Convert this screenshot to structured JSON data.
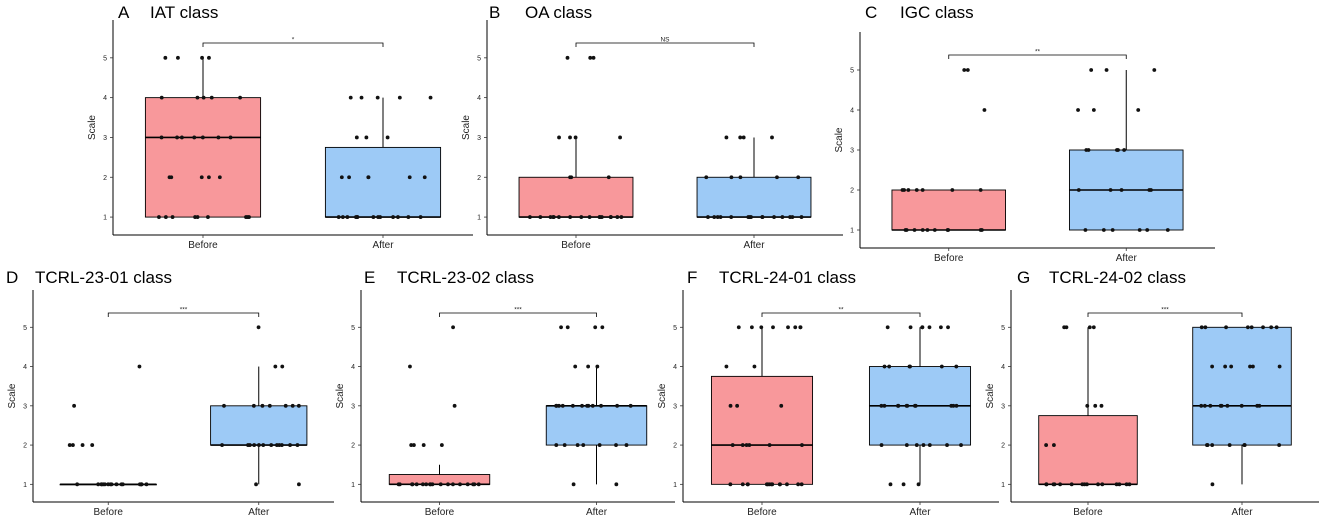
{
  "figure": {
    "colors": {
      "before": "#f8989b",
      "after": "#9dcaf6",
      "points": "#111111",
      "axis": "#000000"
    }
  },
  "chart_data": [
    {
      "type": "box",
      "letter": "A",
      "title": "IAT class",
      "ylabel": "Scale",
      "ylim": [
        0.55,
        5.95
      ],
      "yticks": [
        1,
        2,
        3,
        4,
        5
      ],
      "categories": [
        "Before",
        "After"
      ],
      "significance": "*",
      "boxes": [
        {
          "q1": 1,
          "median": 3,
          "q3": 4,
          "whisker_low": 1,
          "whisker_high": 5,
          "points": [
            5,
            5,
            5,
            5,
            4,
            4,
            4,
            4,
            4,
            3,
            3,
            3,
            3,
            3,
            3,
            3,
            2,
            2,
            2,
            2,
            2,
            1,
            1,
            1,
            1,
            1,
            1,
            1,
            1,
            1
          ]
        },
        {
          "q1": 1,
          "median": 1,
          "q3": 2.75,
          "whisker_low": 1,
          "whisker_high": 4,
          "points": [
            4,
            4,
            4,
            4,
            4,
            3,
            3,
            3,
            2,
            2,
            2,
            2,
            2,
            2,
            1,
            1,
            1,
            1,
            1,
            1,
            1,
            1,
            1,
            1,
            1,
            1,
            1
          ]
        }
      ]
    },
    {
      "type": "box",
      "letter": "B",
      "title": "OA class",
      "ylabel": "Scale",
      "ylim": [
        0.55,
        5.95
      ],
      "yticks": [
        1,
        2,
        3,
        4,
        5
      ],
      "categories": [
        "Before",
        "After"
      ],
      "significance": "NS",
      "boxes": [
        {
          "q1": 1,
          "median": 1,
          "q3": 2,
          "whisker_low": 1,
          "whisker_high": 3,
          "points": [
            5,
            5,
            5,
            3,
            3,
            3,
            3,
            2,
            2,
            2,
            1,
            1,
            1,
            1,
            1,
            1,
            1,
            1,
            1,
            1,
            1,
            1,
            1,
            1,
            1,
            1
          ]
        },
        {
          "q1": 1,
          "median": 1,
          "q3": 2,
          "whisker_low": 1,
          "whisker_high": 3,
          "points": [
            3,
            3,
            3,
            3,
            2,
            2,
            2,
            2,
            2,
            1,
            1,
            1,
            1,
            1,
            1,
            1,
            1,
            1,
            1,
            1,
            1,
            1,
            1,
            1
          ]
        }
      ]
    },
    {
      "type": "box",
      "letter": "C",
      "title": "IGC class",
      "ylabel": "Scale",
      "ylim": [
        0.55,
        5.95
      ],
      "yticks": [
        1,
        2,
        3,
        4,
        5
      ],
      "categories": [
        "Before",
        "After"
      ],
      "significance": "**",
      "boxes": [
        {
          "q1": 1,
          "median": 1,
          "q3": 2,
          "whisker_low": 1,
          "whisker_high": 2,
          "points": [
            5,
            5,
            4,
            2,
            2,
            2,
            2,
            2,
            2,
            2,
            1,
            1,
            1,
            1,
            1,
            1,
            1,
            1,
            1,
            1
          ]
        },
        {
          "q1": 1,
          "median": 2,
          "q3": 3,
          "whisker_low": 1,
          "whisker_high": 5,
          "points": [
            5,
            5,
            5,
            4,
            4,
            4,
            3,
            3,
            3,
            3,
            3,
            2,
            2,
            2,
            2,
            2,
            1,
            1,
            1,
            1,
            1,
            1
          ]
        }
      ]
    },
    {
      "type": "box",
      "letter": "D",
      "title": "TCRL-23-01 class",
      "ylabel": "Scale",
      "ylim": [
        0.55,
        5.95
      ],
      "yticks": [
        1,
        2,
        3,
        4,
        5
      ],
      "categories": [
        "Before",
        "After"
      ],
      "significance": "***",
      "boxes": [
        {
          "q1": 1,
          "median": 1,
          "q3": 1,
          "whisker_low": 1,
          "whisker_high": 1,
          "points": [
            4,
            3,
            2,
            2,
            2,
            2,
            1,
            1,
            1,
            1,
            1,
            1,
            1,
            1,
            1,
            1,
            1,
            1,
            1,
            1,
            1,
            1,
            1
          ]
        },
        {
          "q1": 2,
          "median": 2,
          "q3": 3,
          "whisker_low": 1,
          "whisker_high": 4,
          "points": [
            5,
            4,
            4,
            3,
            3,
            3,
            3,
            3,
            3,
            3,
            2,
            2,
            2,
            2,
            2,
            2,
            2,
            2,
            2,
            2,
            2,
            2,
            1,
            1
          ]
        }
      ]
    },
    {
      "type": "box",
      "letter": "E",
      "title": "TCRL-23-02 class",
      "ylabel": "Scale",
      "ylim": [
        0.55,
        5.95
      ],
      "yticks": [
        1,
        2,
        3,
        4,
        5
      ],
      "categories": [
        "Before",
        "After"
      ],
      "significance": "***",
      "boxes": [
        {
          "q1": 1,
          "median": 1,
          "q3": 1.25,
          "whisker_low": 1,
          "whisker_high": 1.5,
          "points": [
            5,
            4,
            3,
            2,
            2,
            2,
            2,
            1,
            1,
            1,
            1,
            1,
            1,
            1,
            1,
            1,
            1,
            1,
            1,
            1,
            1,
            1,
            1,
            1,
            1
          ]
        },
        {
          "q1": 2,
          "median": 3,
          "q3": 3,
          "whisker_low": 1,
          "whisker_high": 4,
          "points": [
            5,
            5,
            5,
            5,
            4,
            4,
            4,
            3,
            3,
            3,
            3,
            3,
            3,
            3,
            3,
            3,
            3,
            3,
            3,
            2,
            2,
            2,
            2,
            2,
            2,
            2,
            1,
            1
          ]
        }
      ]
    },
    {
      "type": "box",
      "letter": "F",
      "title": "TCRL-24-01 class",
      "ylabel": "Scale",
      "ylim": [
        0.55,
        5.95
      ],
      "yticks": [
        1,
        2,
        3,
        4,
        5
      ],
      "categories": [
        "Before",
        "After"
      ],
      "significance": "**",
      "boxes": [
        {
          "q1": 1,
          "median": 2,
          "q3": 3.75,
          "whisker_low": 1,
          "whisker_high": 5,
          "points": [
            5,
            5,
            5,
            5,
            5,
            5,
            5,
            5,
            4,
            4,
            3,
            3,
            3,
            2,
            2,
            2,
            2,
            2,
            2,
            1,
            1,
            1,
            1,
            1,
            1,
            1,
            1,
            1,
            1,
            1,
            1,
            1,
            1
          ]
        },
        {
          "q1": 2,
          "median": 3,
          "q3": 4,
          "whisker_low": 1,
          "whisker_high": 5,
          "points": [
            5,
            5,
            5,
            5,
            5,
            5,
            5,
            4,
            4,
            4,
            4,
            4,
            4,
            3,
            3,
            3,
            3,
            3,
            3,
            3,
            3,
            3,
            3,
            3,
            2,
            2,
            2,
            2,
            2,
            2,
            2,
            1,
            1,
            1
          ]
        }
      ]
    },
    {
      "type": "box",
      "letter": "G",
      "title": "TCRL-24-02 class",
      "ylabel": "Scale",
      "ylim": [
        0.55,
        5.95
      ],
      "yticks": [
        1,
        2,
        3,
        4,
        5
      ],
      "categories": [
        "Before",
        "After"
      ],
      "significance": "***",
      "boxes": [
        {
          "q1": 1,
          "median": 1,
          "q3": 2.75,
          "whisker_low": 1,
          "whisker_high": 5,
          "points": [
            5,
            5,
            5,
            5,
            3,
            3,
            3,
            2,
            2,
            1,
            1,
            1,
            1,
            1,
            1,
            1,
            1,
            1,
            1,
            1,
            1,
            1,
            1,
            1
          ]
        },
        {
          "q1": 2,
          "median": 3,
          "q3": 5,
          "whisker_low": 1,
          "whisker_high": 5,
          "points": [
            5,
            5,
            5,
            5,
            5,
            5,
            5,
            5,
            4,
            4,
            4,
            4,
            4,
            4,
            3,
            3,
            3,
            3,
            3,
            3,
            3,
            3,
            3,
            2,
            2,
            2,
            2,
            2,
            2,
            2,
            1
          ]
        }
      ]
    }
  ]
}
